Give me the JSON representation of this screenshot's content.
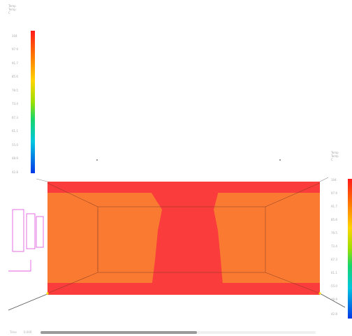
{
  "legend_left": {
    "title_lines": [
      "Temp",
      "Temp",
      "C"
    ],
    "ticks": [
      "104",
      "97.9",
      "91.7",
      "85.6",
      "79.5",
      "73.4",
      "67.3",
      "61.1",
      "55.0",
      "48.9",
      "42.8"
    ]
  },
  "legend_right": {
    "title_lines": [
      "Temp",
      "Temp",
      "C"
    ],
    "ticks": [
      "104",
      "97.9",
      "91.7",
      "85.6",
      "79.5",
      "73.4",
      "67.3",
      "61.1",
      "55.0",
      "48.9",
      "42.8"
    ]
  },
  "bottom_bar": {
    "label": "Time",
    "value": "0.000"
  },
  "colors": {
    "hot": "#fa3c3c",
    "warm": "#fa7a32",
    "outline": "#e060e0"
  }
}
